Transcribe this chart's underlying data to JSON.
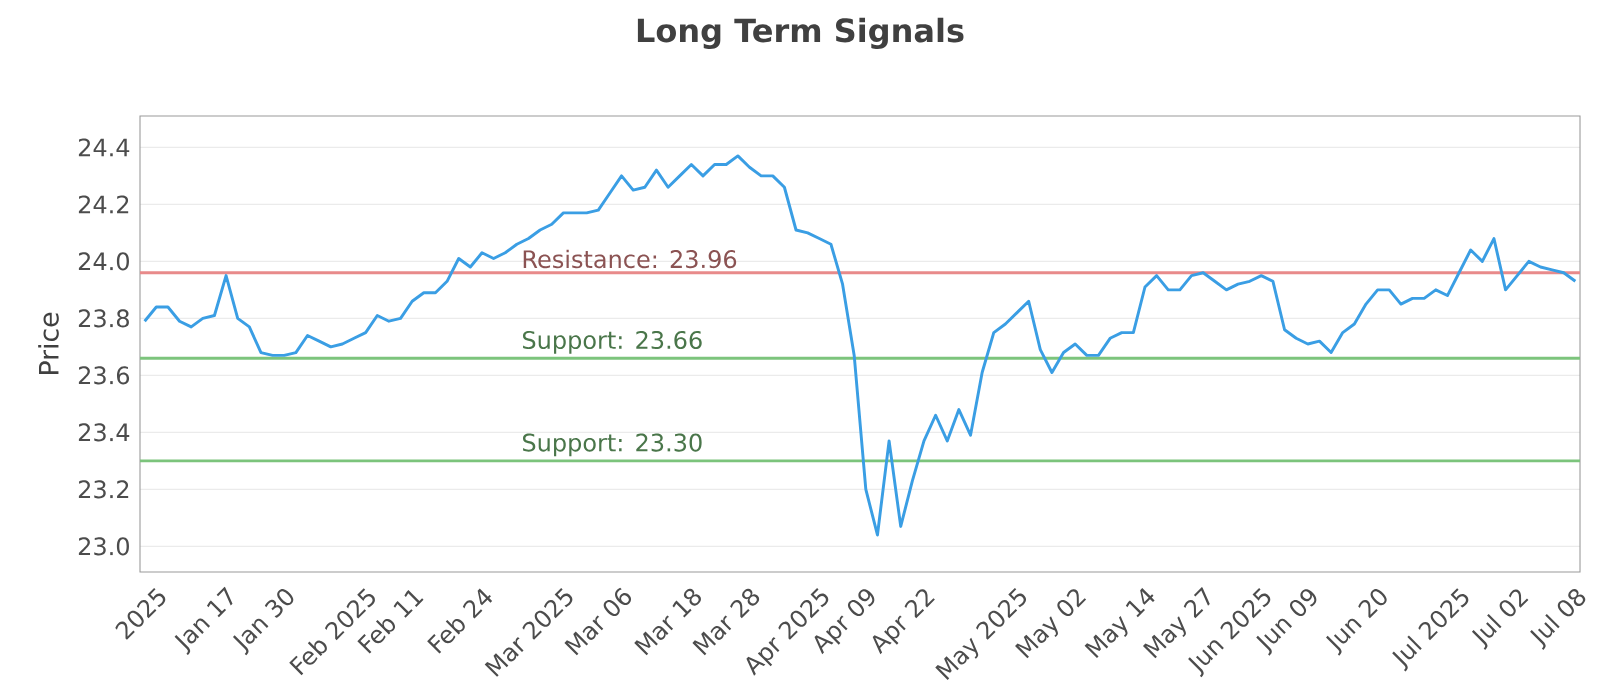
{
  "chart_data": {
    "type": "line",
    "title": "Long Term Signals",
    "ylabel": "Price",
    "categories": [
      null,
      "2025",
      null,
      null,
      null,
      null,
      null,
      "Jan 17",
      null,
      null,
      null,
      null,
      "Jan 30",
      null,
      null,
      null,
      null,
      null,
      null,
      "Feb 2025",
      null,
      null,
      null,
      "Feb 11",
      null,
      null,
      null,
      null,
      null,
      "Feb 24",
      null,
      null,
      null,
      null,
      null,
      null,
      "Mar 2025",
      null,
      null,
      null,
      null,
      "Mar 06",
      null,
      null,
      null,
      null,
      null,
      "Mar 18",
      null,
      null,
      null,
      null,
      "Mar 28",
      null,
      null,
      null,
      null,
      null,
      "Apr 2025",
      null,
      null,
      null,
      "Apr 09",
      null,
      null,
      null,
      null,
      "Apr 22",
      null,
      null,
      null,
      null,
      null,
      null,
      null,
      "May 2025",
      null,
      null,
      null,
      null,
      "May 02",
      null,
      null,
      null,
      null,
      null,
      "May 14",
      null,
      null,
      null,
      null,
      "May 27",
      null,
      null,
      null,
      null,
      "Jun 2025",
      null,
      null,
      null,
      "Jun 09",
      null,
      null,
      null,
      null,
      null,
      "Jun 20",
      null,
      null,
      null,
      null,
      null,
      null,
      "Jul 2025",
      null,
      null,
      null,
      null,
      "Jul 02",
      null,
      null,
      null,
      null,
      "Jul 08"
    ],
    "series": [
      {
        "color": "#3a9ee4",
        "values": [
          23.79,
          23.84,
          23.84,
          23.79,
          23.77,
          23.8,
          23.81,
          23.95,
          23.8,
          23.77,
          23.68,
          23.67,
          23.67,
          23.68,
          23.74,
          23.72,
          23.7,
          23.71,
          23.73,
          23.75,
          23.81,
          23.79,
          23.8,
          23.86,
          23.89,
          23.89,
          23.93,
          24.01,
          23.98,
          24.03,
          24.01,
          24.03,
          24.06,
          24.08,
          24.11,
          24.13,
          24.17,
          24.17,
          24.17,
          24.18,
          24.24,
          24.3,
          24.25,
          24.26,
          24.32,
          24.26,
          24.3,
          24.34,
          24.3,
          24.34,
          24.34,
          24.37,
          24.33,
          24.3,
          24.3,
          24.26,
          24.11,
          24.1,
          24.08,
          24.06,
          23.92,
          23.67,
          23.2,
          23.04,
          23.37,
          23.07,
          23.23,
          23.37,
          23.46,
          23.37,
          23.48,
          23.39,
          23.61,
          23.75,
          23.78,
          23.82,
          23.86,
          23.69,
          23.61,
          23.68,
          23.71,
          23.67,
          23.67,
          23.73,
          23.75,
          23.75,
          23.91,
          23.95,
          23.9,
          23.9,
          23.95,
          23.96,
          23.93,
          23.9,
          23.92,
          23.93,
          23.95,
          23.93,
          23.76,
          23.73,
          23.71,
          23.72,
          23.68,
          23.75,
          23.78,
          23.85,
          23.9,
          23.9,
          23.85,
          23.87,
          23.87,
          23.9,
          23.88,
          23.96,
          24.04,
          24.0,
          24.08,
          23.9,
          23.95,
          24.0,
          23.98,
          23.97,
          23.96,
          23.93
        ]
      }
    ],
    "ylim": [
      22.91,
      24.51
    ],
    "yticks": [
      {
        "value": 23.0,
        "label": "23.0"
      },
      {
        "value": 23.2,
        "label": "23.2"
      },
      {
        "value": 23.4,
        "label": "23.4"
      },
      {
        "value": 23.6,
        "label": "23.6"
      },
      {
        "value": 23.8,
        "label": "23.8"
      },
      {
        "value": 24.0,
        "label": "24.0"
      },
      {
        "value": 24.2,
        "label": "24.2"
      },
      {
        "value": 24.4,
        "label": "24.4"
      }
    ],
    "grid": "y",
    "marker": "none",
    "line_style": "solid",
    "ref_lines": [
      {
        "axis": "y",
        "value": 23.96,
        "label": "Resistance: 23.96",
        "color": "#e88a8a"
      },
      {
        "axis": "y",
        "value": 23.66,
        "label": "Support: 23.66",
        "color": "#7cc47c"
      },
      {
        "axis": "y",
        "value": 23.3,
        "label": "Support: 23.30",
        "color": "#7cc47c"
      }
    ]
  }
}
